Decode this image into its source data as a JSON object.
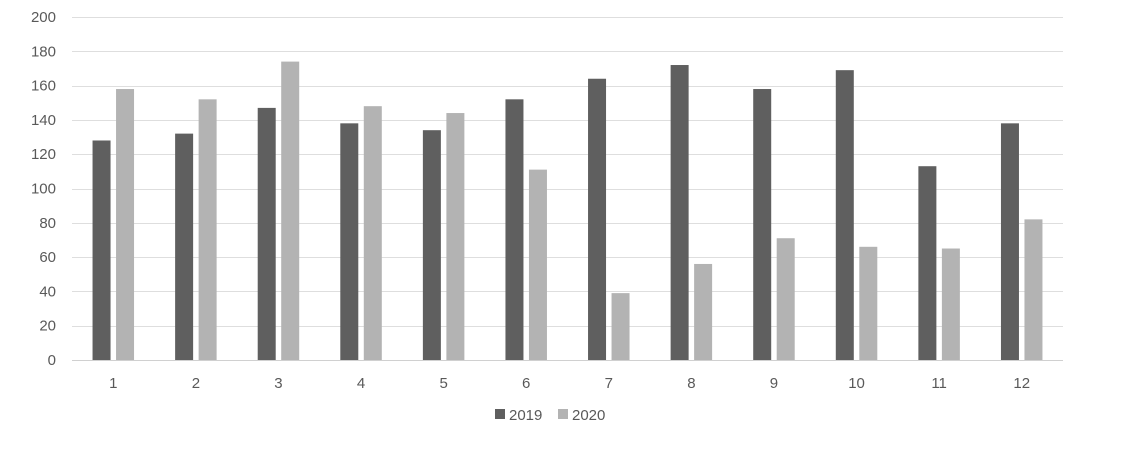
{
  "chart_data": {
    "type": "bar",
    "title": "",
    "xlabel": "",
    "ylabel": "",
    "categories": [
      "1",
      "2",
      "3",
      "4",
      "5",
      "6",
      "7",
      "8",
      "9",
      "10",
      "11",
      "12"
    ],
    "series": [
      {
        "name": "2019",
        "color": "#5f5f5f",
        "values": [
          128,
          132,
          147,
          138,
          134,
          152,
          164,
          172,
          158,
          169,
          113,
          138
        ]
      },
      {
        "name": "2020",
        "color": "#b3b3b3",
        "values": [
          158,
          152,
          174,
          148,
          144,
          111,
          39,
          56,
          71,
          66,
          65,
          82
        ]
      }
    ],
    "ylim": [
      0,
      200
    ],
    "yticks": [
      0,
      20,
      40,
      60,
      80,
      100,
      120,
      140,
      160,
      180,
      200
    ],
    "grid": true,
    "legend_position": "bottom"
  }
}
